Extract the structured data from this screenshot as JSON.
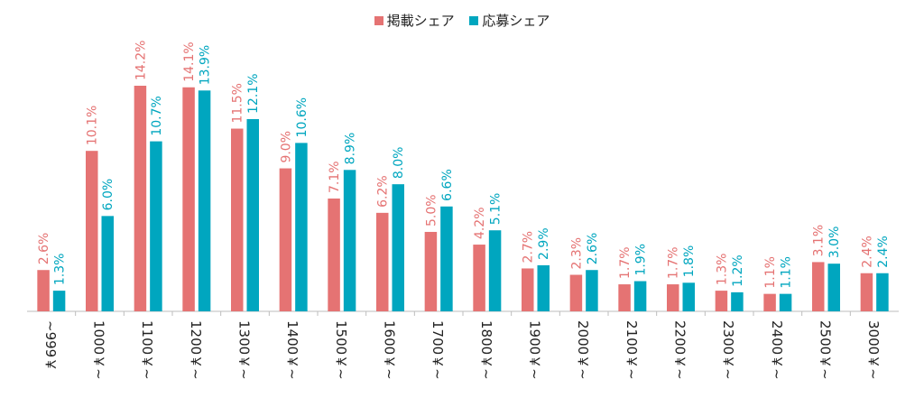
{
  "chart_data": {
    "type": "bar",
    "categories": [
      "~999￥",
      "1000￥~",
      "1100￥~",
      "1200￥~",
      "1300￥~",
      "1400￥~",
      "1500￥~",
      "1600￥~",
      "1700￥~",
      "1800￥~",
      "1900￥~",
      "2000￥~",
      "2100￥~",
      "2200￥~",
      "2300￥~",
      "2400￥~",
      "2500￥~",
      "3000￥~"
    ],
    "series": [
      {
        "name": "掲載シェア",
        "color": "#E57373",
        "values": [
          2.6,
          10.1,
          14.2,
          14.1,
          11.5,
          9.0,
          7.1,
          6.2,
          5.0,
          4.2,
          2.7,
          2.3,
          1.7,
          1.7,
          1.3,
          1.1,
          3.1,
          2.4
        ],
        "labels": [
          "2.6%",
          "10.1%",
          "14.2%",
          "14.1%",
          "11.5%",
          "9.0%",
          "7.1%",
          "6.2%",
          "5.0%",
          "4.2%",
          "2.7%",
          "2.3%",
          "1.7%",
          "1.7%",
          "1.3%",
          "1.1%",
          "3.1%",
          "2.4%"
        ]
      },
      {
        "name": "応募シェア",
        "color": "#00A6BF",
        "values": [
          1.3,
          6.0,
          10.7,
          13.9,
          12.1,
          10.6,
          8.9,
          8.0,
          6.6,
          5.1,
          2.9,
          2.6,
          1.9,
          1.8,
          1.2,
          1.1,
          3.0,
          2.4
        ],
        "labels": [
          "1.3%",
          "6.0%",
          "10.7%",
          "13.9%",
          "12.1%",
          "10.6%",
          "8.9%",
          "8.0%",
          "6.6%",
          "5.1%",
          "2.9%",
          "2.6%",
          "1.9%",
          "1.8%",
          "1.2%",
          "1.1%",
          "3.0%",
          "2.4%"
        ]
      }
    ],
    "ylim": [
      0,
      14.2
    ],
    "legend_position": "top-center",
    "grid": false
  }
}
